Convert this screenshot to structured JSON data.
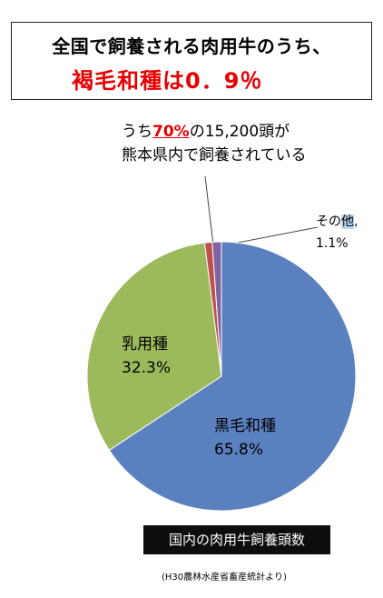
{
  "title": {
    "line1": "全国で飼養される肉用牛のうち、",
    "line2": "褐毛和種は0．9％"
  },
  "callout": {
    "prefix": "うち",
    "highlight": "70%",
    "suffix": "の15,200頭が",
    "line2": "熊本県内で飼養されている"
  },
  "chart_data": {
    "type": "pie",
    "title": "国内の肉用牛飼養頭数",
    "slices": [
      {
        "label": "黒毛和種",
        "value": 65.8,
        "value_label": "65.8%",
        "color": "#5b80c0"
      },
      {
        "label": "乳用種",
        "value": 32.3,
        "value_label": "32.3%",
        "color": "#9cba5c"
      },
      {
        "label": "褐毛和種",
        "value": 0.9,
        "value_label": "",
        "color": "#c0504d"
      },
      {
        "label": "その他",
        "value": 1.1,
        "value_label": "1.1%",
        "color": "#8064a2"
      }
    ],
    "legend": "none"
  },
  "labels": {
    "other_name_a": "その",
    "other_name_b": "他",
    "other_punct": ","
  },
  "footer": {
    "caption": "国内の肉用牛飼養頭数",
    "source": "(H30農林水産省畜産統計より)"
  }
}
